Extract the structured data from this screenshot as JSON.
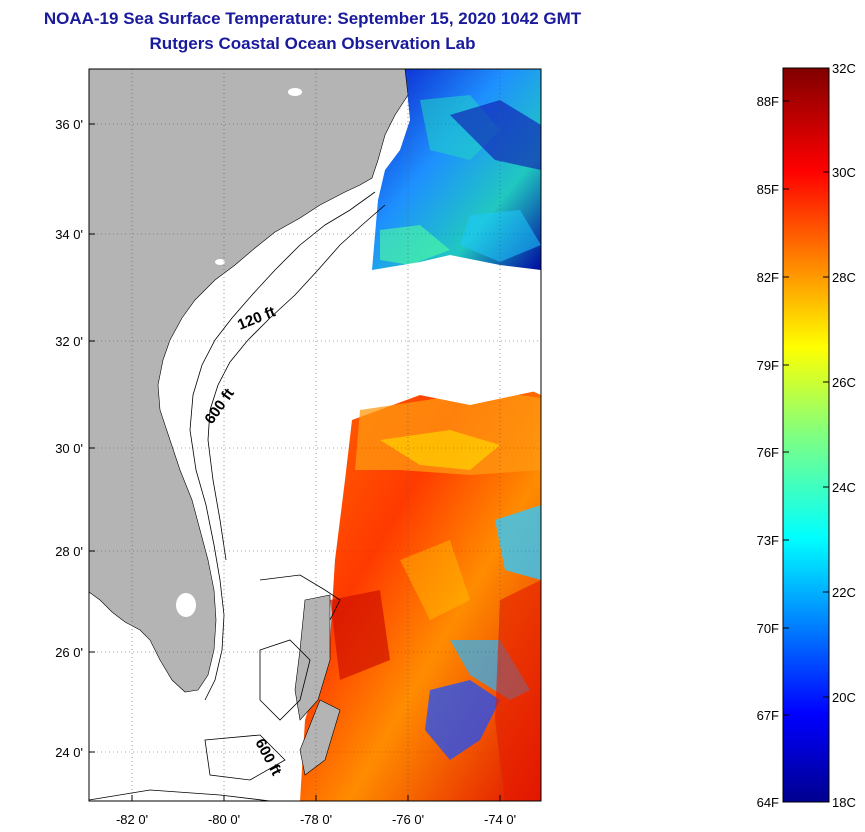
{
  "header": {
    "title": "NOAA-19 Sea Surface Temperature:  September 15, 2020 1042 GMT",
    "subtitle": "Rutgers Coastal Ocean Observation Lab"
  },
  "map": {
    "longitude_labels": [
      "-82 0'",
      "-80 0'",
      "-78 0'",
      "-76 0'",
      "-74 0'"
    ],
    "latitude_labels": [
      "36 0'",
      "34 0'",
      "32 0'",
      "30 0'",
      "28 0'",
      "26 0'",
      "24 0'"
    ],
    "isobath_labels": [
      "120 ft",
      "600 ft",
      "600 ft"
    ],
    "land_color": "#b4b4b4",
    "nodata_color": "#ffffff",
    "grid": true
  },
  "colorbar": {
    "fahrenheit_labels": [
      "88F",
      "85F",
      "82F",
      "79F",
      "76F",
      "73F",
      "70F",
      "67F",
      "64F"
    ],
    "celsius_labels": [
      "32C",
      "30C",
      "28C",
      "26C",
      "24C",
      "22C",
      "20C",
      "18C"
    ],
    "range_c": [
      18,
      32
    ],
    "colormap": "jet"
  }
}
